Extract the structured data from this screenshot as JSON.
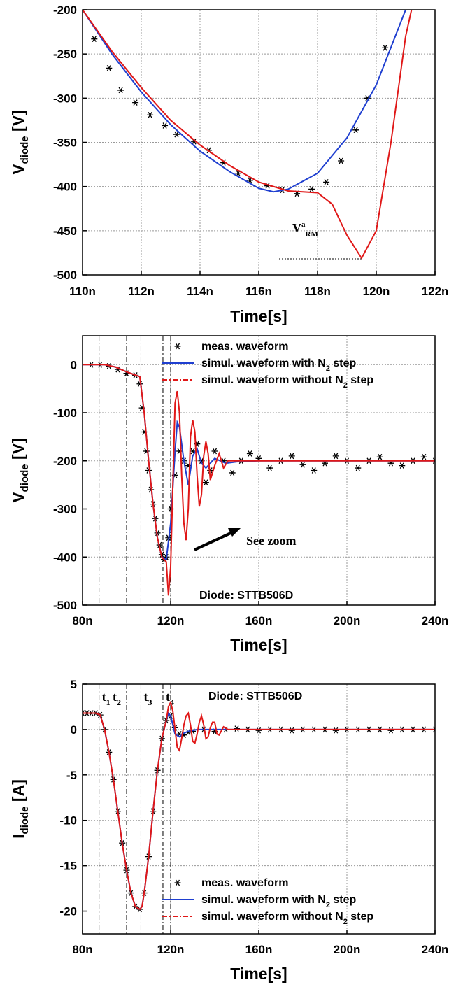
{
  "chart_data": [
    {
      "type": "line",
      "ylabel": [
        "V",
        "diode",
        " [V]"
      ],
      "xlabel": "Time[s]",
      "xlim": [
        110,
        122
      ],
      "xticks": [
        {
          "value": 110,
          "label": "110n"
        },
        {
          "value": 112,
          "label": "112n"
        },
        {
          "value": 114,
          "label": "114n"
        },
        {
          "value": 116,
          "label": "116n"
        },
        {
          "value": 118,
          "label": "118n"
        },
        {
          "value": 120,
          "label": "120n"
        },
        {
          "value": 122,
          "label": "122n"
        }
      ],
      "ylim": [
        -500,
        -200
      ],
      "yticks": [
        -500,
        -450,
        -400,
        -350,
        -300,
        -250,
        -200
      ],
      "grid": true,
      "annotations": [
        [
          "V",
          "a",
          "RM"
        ]
      ],
      "series": [
        {
          "mode": "markers",
          "color": "#000000",
          "x": [
            110.4,
            110.9,
            111.3,
            111.8,
            112.3,
            112.8,
            113.2,
            113.8,
            114.3,
            114.8,
            115.3,
            115.7,
            116.3,
            116.8,
            117.3,
            117.8,
            118.3,
            118.8,
            119.3,
            119.7,
            120.3
          ],
          "values": [
            -233,
            -266,
            -291,
            -305,
            -319,
            -331,
            -341,
            -349,
            -359,
            -373,
            -385,
            -393,
            -399,
            -404,
            -408,
            -403,
            -395,
            -371,
            -336,
            -300,
            -243
          ]
        },
        {
          "mode": "lines",
          "color": "#1f3fd0",
          "x": [
            110,
            111,
            112,
            113,
            114,
            115,
            116,
            116.5,
            117,
            118,
            119,
            120,
            121
          ],
          "values": [
            -200,
            -250,
            -293,
            -330,
            -360,
            -383,
            -402,
            -406,
            -403,
            -385,
            -345,
            -285,
            -200
          ]
        },
        {
          "mode": "lines",
          "color": "#e01818",
          "x": [
            110,
            111,
            112,
            113,
            114,
            115,
            116,
            117,
            118,
            118.5,
            119,
            119.5,
            120,
            120.5,
            121,
            121.2
          ],
          "values": [
            -200,
            -247,
            -288,
            -325,
            -353,
            -376,
            -395,
            -405,
            -407,
            -420,
            -455,
            -481,
            -450,
            -350,
            -230,
            -200
          ]
        }
      ]
    },
    {
      "type": "line",
      "ylabel": [
        "V",
        "diode",
        " [V]"
      ],
      "xlabel": "Time[s]",
      "xlim": [
        80,
        240
      ],
      "xticks": [
        {
          "value": 80,
          "label": "80n"
        },
        {
          "value": 120,
          "label": "120n"
        },
        {
          "value": 160,
          "label": "160n"
        },
        {
          "value": 200,
          "label": "200n"
        },
        {
          "value": 240,
          "label": "240n"
        }
      ],
      "ylim": [
        -500,
        60
      ],
      "yticks": [
        -500,
        -400,
        -300,
        -200,
        -100,
        0
      ],
      "grid": true,
      "legend": "upper right",
      "vlines": [
        87.5,
        100,
        106.5,
        116.5,
        120
      ],
      "annotations": [
        "See zoom",
        "Diode: STTB506D"
      ],
      "series": [
        {
          "name": "meas. waveform",
          "mode": "markers",
          "color": "#000000",
          "x": [
            84,
            88,
            92,
            96,
            100,
            104,
            106,
            107,
            108,
            109,
            110,
            111,
            112,
            113,
            114,
            115,
            116,
            117,
            118,
            119,
            120,
            122,
            124,
            126,
            128,
            130,
            132,
            134,
            136,
            138,
            140,
            144,
            148,
            152,
            156,
            160,
            165,
            170,
            175,
            180,
            185,
            190,
            195,
            200,
            205,
            210,
            215,
            220,
            225,
            230,
            235,
            240
          ],
          "values": [
            0,
            0,
            -3,
            -10,
            -18,
            -22,
            -40,
            -90,
            -140,
            -180,
            -220,
            -260,
            -290,
            -320,
            -350,
            -375,
            -395,
            -405,
            -400,
            -360,
            -300,
            -230,
            -180,
            -200,
            -210,
            -180,
            -165,
            -200,
            -245,
            -220,
            -180,
            -200,
            -225,
            -200,
            -185,
            -195,
            -215,
            -200,
            -190,
            -208,
            -220,
            -205,
            -190,
            -200,
            -215,
            -200,
            -192,
            -205,
            -210,
            -200,
            -192,
            -200
          ]
        },
        {
          "name": [
            "simul. waveform with N",
            "2",
            " step"
          ],
          "mode": "lines",
          "color": "#1f3fd0",
          "x": [
            80,
            90,
            95,
            100,
            103,
            106,
            108,
            110,
            112,
            114,
            116,
            118,
            120,
            122,
            123,
            124,
            126,
            128,
            130,
            132,
            134,
            136,
            140,
            145,
            150,
            160,
            200,
            240
          ],
          "values": [
            0,
            0,
            -5,
            -15,
            -20,
            -25,
            -100,
            -200,
            -290,
            -360,
            -400,
            -405,
            -330,
            -180,
            -120,
            -130,
            -200,
            -250,
            -190,
            -175,
            -205,
            -215,
            -195,
            -205,
            -202,
            -200,
            -200,
            -200
          ]
        },
        {
          "name": [
            "simul. waveform without N",
            "2",
            " step"
          ],
          "mode": "lines",
          "color": "#e01818",
          "x": [
            80,
            90,
            95,
            100,
            103,
            106,
            108,
            110,
            112,
            114,
            116,
            118,
            119,
            120,
            121,
            122,
            123,
            124,
            125,
            126,
            127,
            128,
            129,
            130,
            131,
            132,
            133,
            134,
            135,
            136,
            137,
            138,
            140,
            142,
            144,
            146,
            150,
            240
          ],
          "values": [
            0,
            0,
            -5,
            -15,
            -20,
            -25,
            -100,
            -200,
            -290,
            -360,
            -400,
            -410,
            -480,
            -420,
            -250,
            -80,
            -55,
            -100,
            -230,
            -330,
            -365,
            -300,
            -150,
            -115,
            -140,
            -230,
            -295,
            -270,
            -190,
            -160,
            -185,
            -240,
            -210,
            -185,
            -215,
            -200,
            -200,
            -200
          ]
        }
      ]
    },
    {
      "type": "line",
      "ylabel": [
        "I",
        "diode",
        " [A]"
      ],
      "xlabel": "Time[s]",
      "xlim": [
        80,
        240
      ],
      "xticks": [
        {
          "value": 80,
          "label": "80n"
        },
        {
          "value": 120,
          "label": "120n"
        },
        {
          "value": 160,
          "label": "160n"
        },
        {
          "value": 200,
          "label": "200n"
        },
        {
          "value": 240,
          "label": "240n"
        }
      ],
      "ylim": [
        -22.5,
        5
      ],
      "yticks": [
        -20,
        -15,
        -10,
        -5,
        0,
        5
      ],
      "grid": true,
      "legend": "lower right",
      "vlines": [
        87.5,
        100,
        106.5,
        116.5,
        120
      ],
      "vline_labels": [
        [
          "t",
          "1"
        ],
        [
          "t",
          "2"
        ],
        [
          "t",
          "3"
        ],
        [
          "t",
          "4"
        ]
      ],
      "annotations": [
        "Diode: STTB506D"
      ],
      "series": [
        {
          "name": "meas. waveform",
          "mode": "markers",
          "color": "#000000",
          "x": [
            80,
            82,
            84,
            86,
            88,
            90,
            92,
            94,
            96,
            98,
            100,
            102,
            104,
            106,
            108,
            110,
            112,
            114,
            116,
            118,
            120,
            122,
            124,
            126,
            128,
            130,
            135,
            140,
            145,
            150,
            155,
            160,
            165,
            170,
            175,
            180,
            185,
            190,
            195,
            200,
            205,
            210,
            215,
            220,
            225,
            230,
            235,
            240
          ],
          "values": [
            1.8,
            1.8,
            1.8,
            1.8,
            1.6,
            0,
            -2.5,
            -5.5,
            -9,
            -12.5,
            -15.5,
            -18,
            -19.5,
            -19.8,
            -18,
            -14,
            -9,
            -4.5,
            -1,
            1,
            1.5,
            0.2,
            -0.5,
            -0.6,
            -0.3,
            -0.2,
            0,
            -0.2,
            0,
            0.1,
            0,
            -0.1,
            0,
            0,
            -0.1,
            0,
            0,
            0,
            -0.1,
            0,
            0,
            0,
            0,
            -0.1,
            0,
            0,
            0,
            0
          ]
        },
        {
          "name": [
            "simul. waveform with N",
            "2",
            " step"
          ],
          "mode": "lines",
          "color": "#1f3fd0",
          "x": [
            80,
            86,
            88,
            90,
            92,
            94,
            96,
            98,
            100,
            102,
            104,
            106,
            107,
            108,
            110,
            112,
            114,
            116,
            118,
            119,
            120,
            121,
            122,
            124,
            126,
            128,
            132,
            160,
            240
          ],
          "values": [
            1.8,
            1.8,
            1.6,
            0,
            -2.5,
            -5.5,
            -9,
            -12.5,
            -15.5,
            -18,
            -19.5,
            -19.8,
            -19.5,
            -18,
            -14,
            -9,
            -4.5,
            -1,
            1,
            1.8,
            1.5,
            0.5,
            -0.5,
            -0.8,
            -0.4,
            -0.2,
            0,
            0,
            0
          ]
        },
        {
          "name": [
            "simul. waveform without N",
            "2",
            " step"
          ],
          "mode": "lines",
          "color": "#e01818",
          "x": [
            80,
            86,
            88,
            90,
            92,
            94,
            96,
            98,
            100,
            102,
            104,
            106,
            107,
            108,
            110,
            112,
            114,
            116,
            118,
            119,
            120,
            121,
            122,
            123,
            124,
            125,
            126,
            127,
            128,
            129,
            130,
            131,
            132,
            133,
            134,
            135,
            136,
            137,
            138,
            139,
            140,
            141,
            142,
            144,
            146,
            150,
            240
          ],
          "values": [
            1.8,
            1.8,
            1.6,
            0,
            -2.5,
            -5.5,
            -9,
            -12.5,
            -15.5,
            -18,
            -19.5,
            -19.8,
            -19.5,
            -18,
            -14,
            -9,
            -4.5,
            -1,
            1,
            2.5,
            3,
            2,
            0,
            -2,
            -2.3,
            -1,
            0.5,
            1.5,
            1.8,
            0.5,
            -1.3,
            -1.5,
            -0.5,
            0.8,
            1.5,
            0.5,
            -1,
            -0.8,
            0.2,
            0.8,
            0.8,
            -0.5,
            -0.6,
            0.3,
            0,
            0,
            0
          ]
        }
      ]
    }
  ]
}
